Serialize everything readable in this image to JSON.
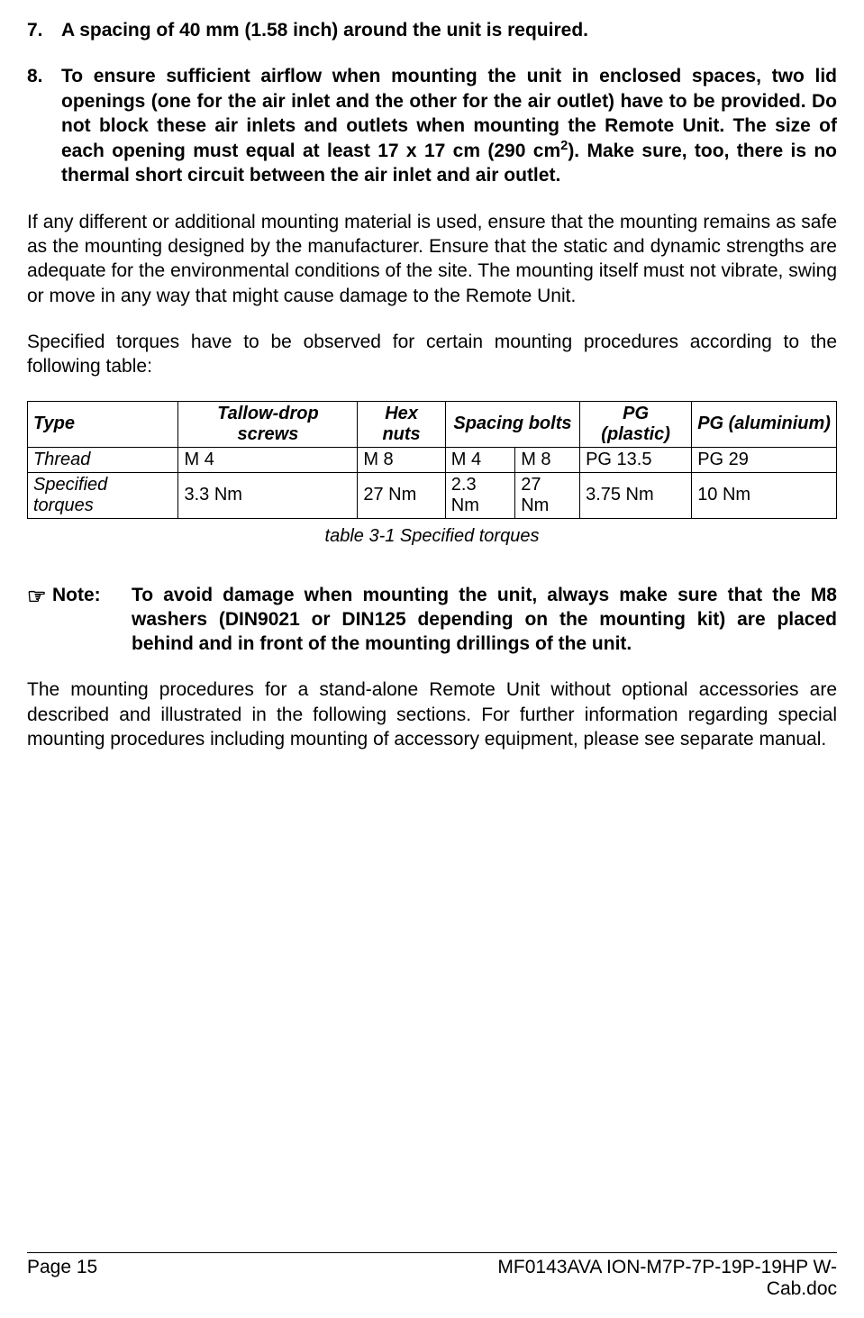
{
  "items": [
    {
      "num": "7.",
      "text": "A spacing of 40 mm (1.58 inch) around the unit is required."
    },
    {
      "num": "8.",
      "text_html": "To ensure sufficient airflow when mounting the unit in enclosed spaces, two lid openings (one for the air inlet and the other for the air outlet) have to be provided. Do not block these air inlets and outlets when mounting the Remote Unit. The size of each opening must equal at least 17 x 17 cm (290 cm<span class='sup'>2</span>). Make sure, too, there is no thermal short circuit between the air inlet and air outlet."
    }
  ],
  "para1": "If any different or additional mounting material is used, ensure that the mounting remains as safe as the mounting designed by the manufacturer. Ensure that the static and dynamic strengths are adequate for the environmental conditions of the site. The mounting itself must not vibrate, swing or move in any way that might cause damage to the Remote Unit.",
  "para2": "Specified torques have to be observed for certain mounting procedures according to the following table:",
  "table": {
    "headers": [
      "Type",
      "Tallow-drop screws",
      "Hex nuts",
      "Spacing bolts",
      "PG (plastic)",
      "PG (aluminium)"
    ],
    "rows": [
      {
        "label": "Thread",
        "cells": [
          "M 4",
          "M 8",
          "M 4",
          "M 8",
          "PG 13.5",
          "PG 29"
        ]
      },
      {
        "label": "Specified torques",
        "cells": [
          "3.3 Nm",
          "27 Nm",
          "2.3 Nm",
          "27 Nm",
          "3.75 Nm",
          "10 Nm"
        ]
      }
    ],
    "caption": "table 3-1 Specified torques"
  },
  "note": {
    "icon": "☞",
    "label": "Note:",
    "text": "To avoid damage when mounting the unit, always make sure that the M8 washers (DIN9021 or DIN125 depending on the mounting kit) are placed behind and in front of the mounting drillings of the unit."
  },
  "para3": "The mounting procedures for a stand-alone Remote Unit without optional accessories are described and illustrated in the following sections. For further information regarding special mounting procedures including mounting of accessory equipment, please see separate manual.",
  "footer": {
    "left": "Page 15",
    "right1": "MF0143AVA ION-M7P-7P-19P-19HP W-",
    "right2": "Cab.doc"
  }
}
